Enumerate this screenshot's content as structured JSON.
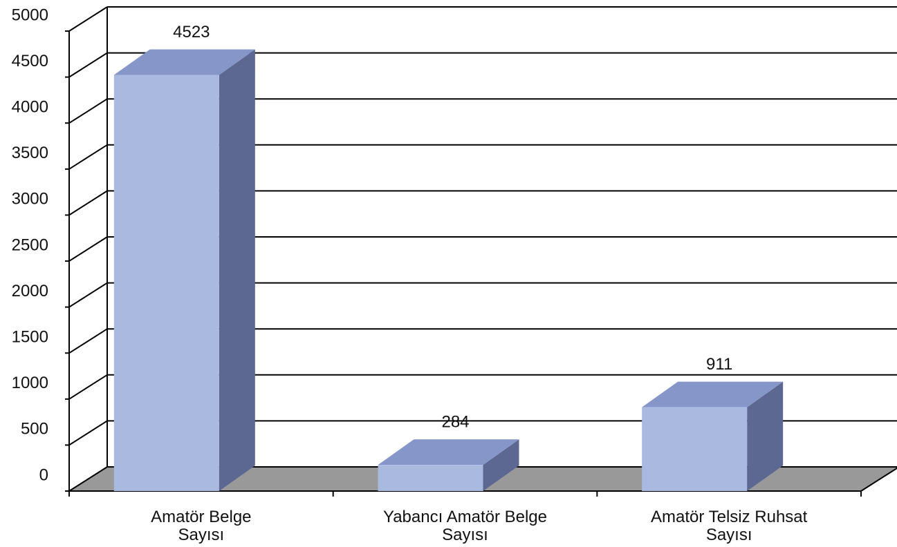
{
  "chart_data": {
    "type": "bar3d",
    "categories": [
      "Amatör Belge\nSayısı",
      "Yabancı Amatör Belge\nSayısı",
      "Amatör Telsiz Ruhsat\nSayısı"
    ],
    "values": [
      4523,
      284,
      911
    ],
    "colors": {
      "front": "#aab9e0",
      "top": "#8796c8",
      "side": "#5d6892",
      "floor": "#999999"
    },
    "ylim": [
      0,
      5000
    ],
    "yticks": [
      0,
      500,
      1000,
      1500,
      2000,
      2500,
      3000,
      3500,
      4000,
      4500,
      5000
    ],
    "grid": true
  }
}
